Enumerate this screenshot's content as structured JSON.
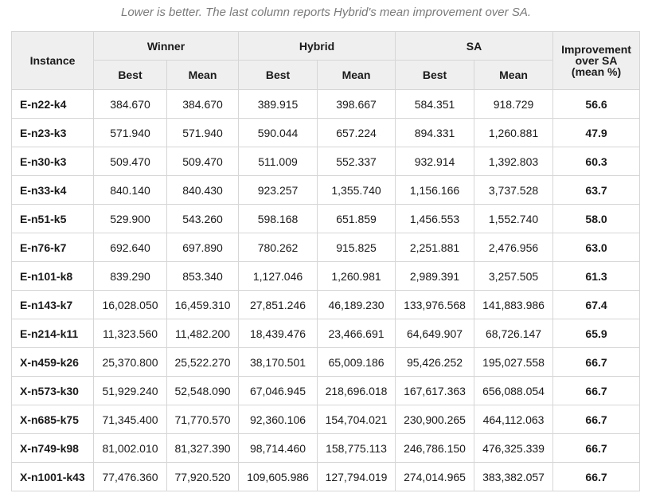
{
  "caption": "Lower is better. The last column reports Hybrid's mean improvement over SA.",
  "headers": {
    "instance": "Instance",
    "winner": "Winner",
    "hybrid": "Hybrid",
    "sa": "SA",
    "improvement_line1": "Improvement",
    "improvement_line2": "over SA",
    "improvement_line3": "(mean %)",
    "best": "Best",
    "mean": "Mean"
  },
  "rows": [
    {
      "instance": "E-n22-k4",
      "winner_best": "384.670",
      "winner_mean": "384.670",
      "hybrid_best": "389.915",
      "hybrid_mean": "398.667",
      "sa_best": "584.351",
      "sa_mean": "918.729",
      "improvement": "56.6"
    },
    {
      "instance": "E-n23-k3",
      "winner_best": "571.940",
      "winner_mean": "571.940",
      "hybrid_best": "590.044",
      "hybrid_mean": "657.224",
      "sa_best": "894.331",
      "sa_mean": "1,260.881",
      "improvement": "47.9"
    },
    {
      "instance": "E-n30-k3",
      "winner_best": "509.470",
      "winner_mean": "509.470",
      "hybrid_best": "511.009",
      "hybrid_mean": "552.337",
      "sa_best": "932.914",
      "sa_mean": "1,392.803",
      "improvement": "60.3"
    },
    {
      "instance": "E-n33-k4",
      "winner_best": "840.140",
      "winner_mean": "840.430",
      "hybrid_best": "923.257",
      "hybrid_mean": "1,355.740",
      "sa_best": "1,156.166",
      "sa_mean": "3,737.528",
      "improvement": "63.7"
    },
    {
      "instance": "E-n51-k5",
      "winner_best": "529.900",
      "winner_mean": "543.260",
      "hybrid_best": "598.168",
      "hybrid_mean": "651.859",
      "sa_best": "1,456.553",
      "sa_mean": "1,552.740",
      "improvement": "58.0"
    },
    {
      "instance": "E-n76-k7",
      "winner_best": "692.640",
      "winner_mean": "697.890",
      "hybrid_best": "780.262",
      "hybrid_mean": "915.825",
      "sa_best": "2,251.881",
      "sa_mean": "2,476.956",
      "improvement": "63.0"
    },
    {
      "instance": "E-n101-k8",
      "winner_best": "839.290",
      "winner_mean": "853.340",
      "hybrid_best": "1,127.046",
      "hybrid_mean": "1,260.981",
      "sa_best": "2,989.391",
      "sa_mean": "3,257.505",
      "improvement": "61.3"
    },
    {
      "instance": "E-n143-k7",
      "winner_best": "16,028.050",
      "winner_mean": "16,459.310",
      "hybrid_best": "27,851.246",
      "hybrid_mean": "46,189.230",
      "sa_best": "133,976.568",
      "sa_mean": "141,883.986",
      "improvement": "67.4"
    },
    {
      "instance": "E-n214-k11",
      "winner_best": "11,323.560",
      "winner_mean": "11,482.200",
      "hybrid_best": "18,439.476",
      "hybrid_mean": "23,466.691",
      "sa_best": "64,649.907",
      "sa_mean": "68,726.147",
      "improvement": "65.9"
    },
    {
      "instance": "X-n459-k26",
      "winner_best": "25,370.800",
      "winner_mean": "25,522.270",
      "hybrid_best": "38,170.501",
      "hybrid_mean": "65,009.186",
      "sa_best": "95,426.252",
      "sa_mean": "195,027.558",
      "improvement": "66.7"
    },
    {
      "instance": "X-n573-k30",
      "winner_best": "51,929.240",
      "winner_mean": "52,548.090",
      "hybrid_best": "67,046.945",
      "hybrid_mean": "218,696.018",
      "sa_best": "167,617.363",
      "sa_mean": "656,088.054",
      "improvement": "66.7"
    },
    {
      "instance": "X-n685-k75",
      "winner_best": "71,345.400",
      "winner_mean": "71,770.570",
      "hybrid_best": "92,360.106",
      "hybrid_mean": "154,704.021",
      "sa_best": "230,900.265",
      "sa_mean": "464,112.063",
      "improvement": "66.7"
    },
    {
      "instance": "X-n749-k98",
      "winner_best": "81,002.010",
      "winner_mean": "81,327.390",
      "hybrid_best": "98,714.460",
      "hybrid_mean": "158,775.113",
      "sa_best": "246,786.150",
      "sa_mean": "476,325.339",
      "improvement": "66.7"
    },
    {
      "instance": "X-n1001-k43",
      "winner_best": "77,476.360",
      "winner_mean": "77,920.520",
      "hybrid_best": "109,605.986",
      "hybrid_mean": "127,794.019",
      "sa_best": "274,014.965",
      "sa_mean": "383,382.057",
      "improvement": "66.7"
    }
  ]
}
